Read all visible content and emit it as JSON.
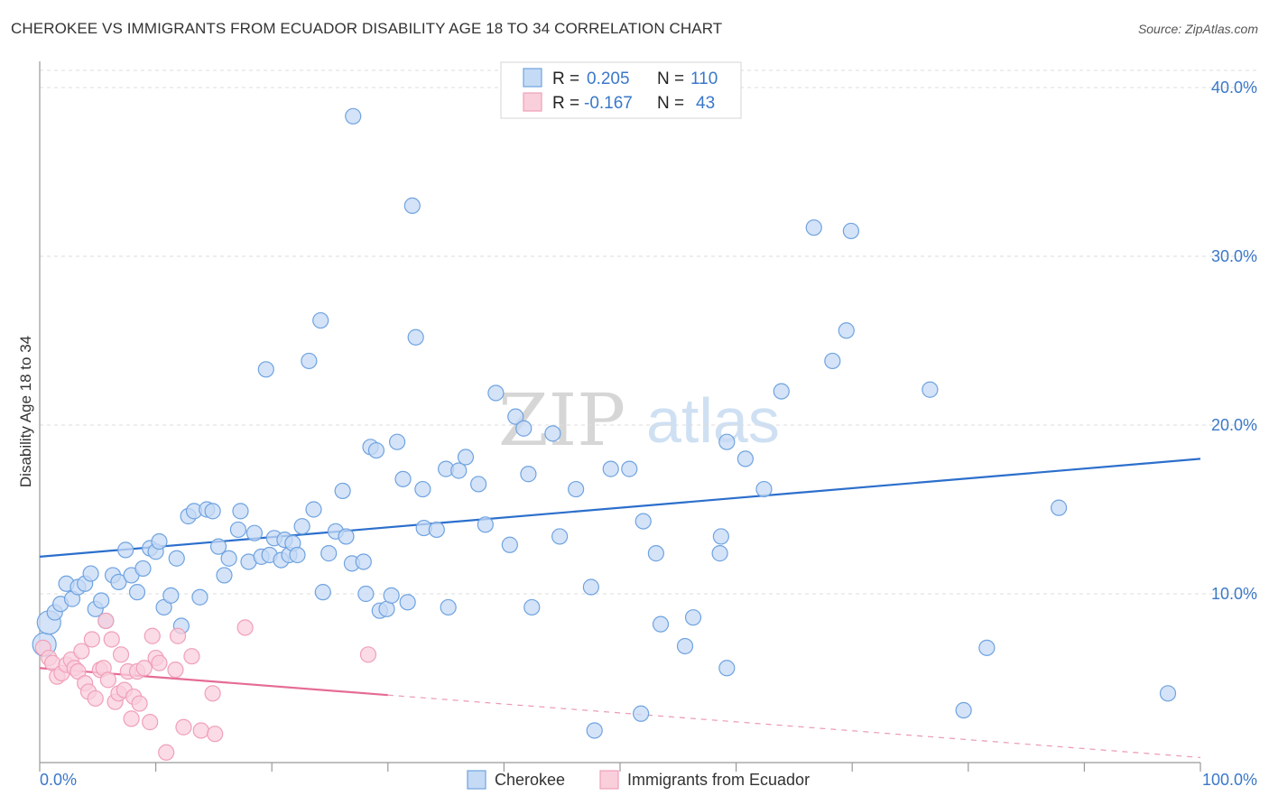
{
  "title": "CHEROKEE VS IMMIGRANTS FROM ECUADOR DISABILITY AGE 18 TO 34 CORRELATION CHART",
  "source": "Source: ZipAtlas.com",
  "watermark": {
    "zip": "ZIP",
    "atlas": "atlas"
  },
  "legend": {
    "rows": [
      {
        "r_label": "R =",
        "r_value": "0.205",
        "n_label": "N =",
        "n_value": "110"
      },
      {
        "r_label": "R =",
        "r_value": "-0.167",
        "n_label": "N =",
        "n_value": "43"
      }
    ]
  },
  "chart_data": {
    "type": "scatter",
    "title": "CHEROKEE VS IMMIGRANTS FROM ECUADOR DISABILITY AGE 18 TO 34 CORRELATION CHART",
    "xlabel": "",
    "ylabel": "Disability Age 18 to 34",
    "xlim": [
      0,
      100
    ],
    "ylim": [
      0,
      40
    ],
    "x_tick_labels": [
      "0.0%",
      "100.0%"
    ],
    "y_ticks": [
      10,
      20,
      30,
      40
    ],
    "y_tick_labels": [
      "10.0%",
      "20.0%",
      "30.0%",
      "40.0%"
    ],
    "grid": true,
    "series": [
      {
        "name": "Cherokee",
        "color": "#6fa3e0",
        "fill": "#c5daf5",
        "trend": {
          "x": [
            0,
            100
          ],
          "y": [
            12.2,
            18.0
          ],
          "style": "solid",
          "color": "#2c6fcc"
        },
        "points": [
          [
            0.4,
            7.0
          ],
          [
            0.8,
            8.3
          ],
          [
            1.3,
            8.9
          ],
          [
            1.8,
            9.4
          ],
          [
            2.3,
            10.6
          ],
          [
            2.8,
            9.7
          ],
          [
            3.3,
            10.4
          ],
          [
            3.9,
            10.6
          ],
          [
            4.4,
            11.2
          ],
          [
            4.8,
            9.1
          ],
          [
            5.3,
            9.6
          ],
          [
            5.7,
            8.4
          ],
          [
            6.3,
            11.1
          ],
          [
            6.8,
            10.7
          ],
          [
            7.4,
            12.6
          ],
          [
            7.9,
            11.1
          ],
          [
            8.4,
            10.1
          ],
          [
            8.9,
            11.5
          ],
          [
            9.5,
            12.7
          ],
          [
            10.0,
            12.5
          ],
          [
            10.3,
            13.1
          ],
          [
            10.7,
            9.2
          ],
          [
            11.3,
            9.9
          ],
          [
            11.8,
            12.1
          ],
          [
            12.2,
            8.1
          ],
          [
            12.8,
            14.6
          ],
          [
            13.3,
            14.9
          ],
          [
            13.8,
            9.8
          ],
          [
            14.4,
            15.0
          ],
          [
            14.9,
            14.9
          ],
          [
            15.4,
            12.8
          ],
          [
            15.9,
            11.1
          ],
          [
            16.3,
            12.1
          ],
          [
            17.1,
            13.8
          ],
          [
            17.3,
            14.9
          ],
          [
            18.0,
            11.9
          ],
          [
            18.5,
            13.6
          ],
          [
            19.1,
            12.2
          ],
          [
            19.5,
            23.3
          ],
          [
            19.8,
            12.3
          ],
          [
            20.2,
            13.3
          ],
          [
            20.8,
            12.0
          ],
          [
            21.1,
            13.2
          ],
          [
            21.5,
            12.3
          ],
          [
            21.8,
            13.0
          ],
          [
            22.2,
            12.3
          ],
          [
            22.6,
            14.0
          ],
          [
            23.2,
            23.8
          ],
          [
            23.6,
            15.0
          ],
          [
            24.2,
            26.2
          ],
          [
            24.4,
            10.1
          ],
          [
            24.9,
            12.4
          ],
          [
            25.5,
            13.7
          ],
          [
            26.1,
            16.1
          ],
          [
            26.4,
            13.4
          ],
          [
            26.9,
            11.8
          ],
          [
            27.0,
            38.3
          ],
          [
            27.9,
            11.9
          ],
          [
            28.1,
            10.0
          ],
          [
            28.5,
            18.7
          ],
          [
            29.0,
            18.5
          ],
          [
            29.3,
            9.0
          ],
          [
            29.9,
            9.1
          ],
          [
            30.3,
            9.9
          ],
          [
            30.8,
            19.0
          ],
          [
            31.3,
            16.8
          ],
          [
            31.7,
            9.5
          ],
          [
            32.1,
            33.0
          ],
          [
            32.4,
            25.2
          ],
          [
            33.0,
            16.2
          ],
          [
            33.1,
            13.9
          ],
          [
            34.2,
            13.8
          ],
          [
            35.0,
            17.4
          ],
          [
            35.2,
            9.2
          ],
          [
            36.1,
            17.3
          ],
          [
            36.7,
            18.1
          ],
          [
            37.8,
            16.5
          ],
          [
            38.4,
            14.1
          ],
          [
            39.3,
            21.9
          ],
          [
            40.5,
            12.9
          ],
          [
            41.0,
            20.5
          ],
          [
            41.7,
            19.8
          ],
          [
            42.1,
            17.1
          ],
          [
            42.4,
            9.2
          ],
          [
            44.2,
            19.5
          ],
          [
            44.8,
            13.4
          ],
          [
            46.2,
            16.2
          ],
          [
            47.5,
            10.4
          ],
          [
            47.8,
            1.9
          ],
          [
            49.2,
            17.4
          ],
          [
            50.8,
            17.4
          ],
          [
            51.8,
            2.9
          ],
          [
            52.0,
            14.3
          ],
          [
            53.1,
            12.4
          ],
          [
            53.5,
            8.2
          ],
          [
            55.6,
            6.9
          ],
          [
            56.3,
            8.6
          ],
          [
            58.6,
            12.4
          ],
          [
            58.7,
            13.4
          ],
          [
            59.2,
            5.6
          ],
          [
            59.2,
            19.0
          ],
          [
            60.8,
            18.0
          ],
          [
            62.4,
            16.2
          ],
          [
            63.9,
            22.0
          ],
          [
            66.7,
            31.7
          ],
          [
            68.3,
            23.8
          ],
          [
            69.5,
            25.6
          ],
          [
            69.9,
            31.5
          ],
          [
            76.7,
            22.1
          ],
          [
            79.6,
            3.1
          ],
          [
            81.6,
            6.8
          ],
          [
            87.8,
            15.1
          ],
          [
            97.2,
            4.1
          ]
        ]
      },
      {
        "name": "Immigrants from Ecuador",
        "color": "#f0a0b8",
        "fill": "#f9cfdc",
        "trend": {
          "x": [
            0,
            30,
            100
          ],
          "y": [
            5.6,
            4.0,
            0.3
          ],
          "style": "solid-then-dashed",
          "solid_to": 30,
          "color": "#e56c95"
        },
        "points": [
          [
            0.3,
            6.8
          ],
          [
            0.8,
            6.2
          ],
          [
            1.1,
            5.9
          ],
          [
            1.5,
            5.1
          ],
          [
            1.9,
            5.3
          ],
          [
            2.3,
            5.8
          ],
          [
            2.7,
            6.1
          ],
          [
            3.0,
            5.6
          ],
          [
            3.3,
            5.4
          ],
          [
            3.6,
            6.6
          ],
          [
            3.9,
            4.7
          ],
          [
            4.2,
            4.2
          ],
          [
            4.5,
            7.3
          ],
          [
            4.8,
            3.8
          ],
          [
            5.2,
            5.5
          ],
          [
            5.5,
            5.6
          ],
          [
            5.7,
            8.4
          ],
          [
            5.9,
            4.9
          ],
          [
            6.2,
            7.3
          ],
          [
            6.5,
            3.6
          ],
          [
            6.8,
            4.1
          ],
          [
            7.0,
            6.4
          ],
          [
            7.3,
            4.3
          ],
          [
            7.6,
            5.4
          ],
          [
            7.9,
            2.6
          ],
          [
            8.1,
            3.9
          ],
          [
            8.4,
            5.4
          ],
          [
            8.6,
            3.5
          ],
          [
            9.0,
            5.6
          ],
          [
            9.5,
            2.4
          ],
          [
            9.7,
            7.5
          ],
          [
            10.0,
            6.2
          ],
          [
            10.3,
            5.9
          ],
          [
            10.9,
            0.6
          ],
          [
            11.7,
            5.5
          ],
          [
            11.9,
            7.5
          ],
          [
            12.4,
            2.1
          ],
          [
            13.1,
            6.3
          ],
          [
            13.9,
            1.9
          ],
          [
            14.9,
            4.1
          ],
          [
            15.1,
            1.7
          ],
          [
            17.7,
            8.0
          ],
          [
            28.3,
            6.4
          ]
        ]
      }
    ]
  },
  "bottom_legend": [
    {
      "label": "Cherokee"
    },
    {
      "label": "Immigrants from Ecuador"
    }
  ]
}
